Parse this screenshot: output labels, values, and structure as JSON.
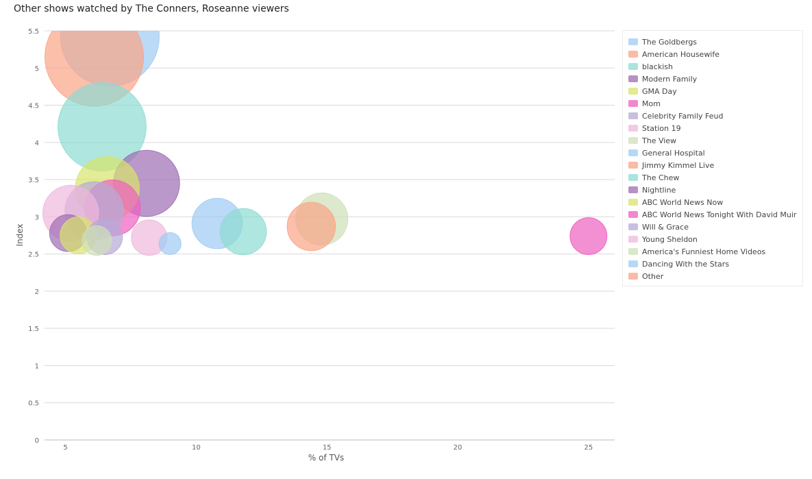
{
  "chart_data": {
    "type": "scatter",
    "title": "Other shows watched by The Conners, Roseanne viewers",
    "xlabel": "% of TVs",
    "ylabel": "Index",
    "xlim": [
      4.2,
      26
    ],
    "ylim": [
      0,
      5.5
    ],
    "xticks": [
      5,
      10,
      15,
      20,
      25
    ],
    "yticks": [
      0,
      0.5,
      1,
      1.5,
      2,
      2.5,
      3,
      3.5,
      4,
      4.5,
      5,
      5.5
    ],
    "grid": "horizontal",
    "legend_position": "right",
    "series": [
      {
        "name": "The Goldbergs",
        "color": "#9ecbf4",
        "x": 6.7,
        "y": 5.42,
        "size": 100
      },
      {
        "name": "American Housewife",
        "color": "#f9a486",
        "x": 6.1,
        "y": 5.15,
        "size": 100
      },
      {
        "name": "blackish",
        "color": "#8ddbd1",
        "x": 6.4,
        "y": 4.21,
        "size": 80
      },
      {
        "name": "Modern Family",
        "color": "#9e6cb3",
        "x": 8.1,
        "y": 3.45,
        "size": 45
      },
      {
        "name": "GMA Day",
        "color": "#d7e46a",
        "x": 6.6,
        "y": 3.38,
        "size": 42
      },
      {
        "name": "Mom",
        "color": "#ee5fc0",
        "x": 6.8,
        "y": 3.12,
        "size": 32
      },
      {
        "name": "Celebrity Family Feud",
        "color": "#b6aad6",
        "x": 6.1,
        "y": 3.08,
        "size": 35
      },
      {
        "name": "Station 19",
        "color": "#efb8dc",
        "x": 5.2,
        "y": 3.05,
        "size": 32
      },
      {
        "name": "The View",
        "color": "#cfdfb8",
        "x": 14.8,
        "y": 2.97,
        "size": 28
      },
      {
        "name": "General Hospital",
        "color": "#9ecbf4",
        "x": 10.8,
        "y": 2.91,
        "size": 26
      },
      {
        "name": "Jimmy Kimmel Live",
        "color": "#f9a486",
        "x": 14.4,
        "y": 2.87,
        "size": 24
      },
      {
        "name": "The Chew",
        "color": "#8ddbd1",
        "x": 11.8,
        "y": 2.8,
        "size": 22
      },
      {
        "name": "Nightline",
        "color": "#9e6cb3",
        "x": 5.1,
        "y": 2.78,
        "size": 14
      },
      {
        "name": "ABC World News Now",
        "color": "#d7e46a",
        "x": 5.5,
        "y": 2.75,
        "size": 14
      },
      {
        "name": "ABC World News Tonight With David Muir",
        "color": "#ee5fc0",
        "x": 25.0,
        "y": 2.74,
        "size": 14
      },
      {
        "name": "Will & Grace",
        "color": "#b6aad6",
        "x": 6.5,
        "y": 2.73,
        "size": 13
      },
      {
        "name": "Young Sheldon",
        "color": "#efb8dc",
        "x": 8.2,
        "y": 2.72,
        "size": 13
      },
      {
        "name": "America's Funniest Home Videos",
        "color": "#cfdfb8",
        "x": 6.2,
        "y": 2.68,
        "size": 9
      },
      {
        "name": "Dancing With the Stars",
        "color": "#9ecbf4",
        "x": 9.0,
        "y": 2.64,
        "size": 5
      },
      {
        "name": "Other",
        "color": "#f9a486",
        "x": null,
        "y": null,
        "size": null
      }
    ]
  }
}
